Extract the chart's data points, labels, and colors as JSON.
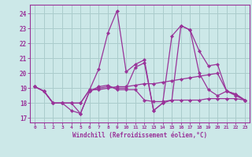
{
  "xlabel": "Windchill (Refroidissement éolien,°C)",
  "background_color": "#cce8e8",
  "grid_color": "#aacccc",
  "line_color": "#993399",
  "x_ticks": [
    0,
    1,
    2,
    3,
    4,
    5,
    6,
    7,
    8,
    9,
    10,
    11,
    12,
    13,
    14,
    15,
    16,
    17,
    18,
    19,
    20,
    21,
    22,
    23
  ],
  "y_ticks": [
    17,
    18,
    19,
    20,
    21,
    22,
    23,
    24
  ],
  "ylim": [
    16.7,
    24.6
  ],
  "xlim": [
    -0.5,
    23.5
  ],
  "series": [
    [
      19.1,
      18.8,
      18.0,
      18.0,
      17.5,
      17.3,
      18.8,
      19.1,
      19.2,
      18.9,
      18.9,
      18.9,
      18.2,
      18.1,
      18.1,
      18.2,
      18.2,
      18.2,
      18.2,
      18.3,
      18.3,
      18.3,
      18.3,
      18.2
    ],
    [
      19.1,
      18.8,
      18.0,
      18.0,
      18.0,
      18.0,
      18.9,
      20.3,
      22.7,
      24.2,
      20.1,
      20.6,
      20.9,
      17.5,
      18.0,
      22.5,
      23.2,
      22.9,
      21.5,
      20.5,
      20.6,
      18.8,
      18.6,
      18.2
    ],
    [
      19.1,
      18.8,
      18.0,
      18.0,
      18.0,
      17.3,
      18.8,
      19.0,
      19.1,
      19.0,
      19.0,
      20.4,
      20.7,
      17.5,
      18.0,
      18.2,
      23.2,
      22.9,
      20.0,
      18.9,
      18.5,
      18.8,
      18.5,
      18.2
    ],
    [
      19.1,
      18.8,
      18.0,
      18.0,
      18.0,
      18.0,
      18.9,
      18.9,
      19.0,
      19.1,
      19.1,
      19.2,
      19.3,
      19.3,
      19.4,
      19.5,
      19.6,
      19.7,
      19.8,
      19.9,
      20.0,
      18.8,
      18.6,
      18.2
    ]
  ]
}
